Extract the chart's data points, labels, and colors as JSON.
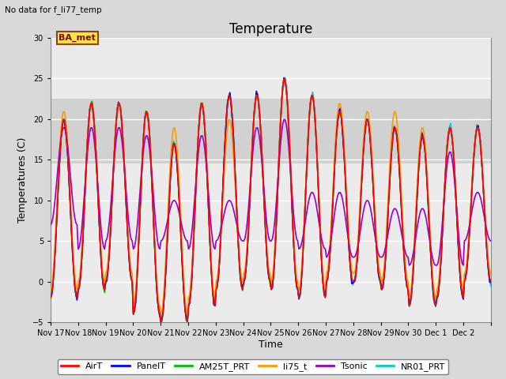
{
  "title": "Temperature",
  "ylabel": "Temperatures (C)",
  "xlabel": "Time",
  "no_data_label": "No data for f_li77_temp",
  "ba_met_label": "BA_met",
  "ylim": [
    -5,
    30
  ],
  "n_days": 16,
  "x_tick_labels": [
    "Nov 17",
    "Nov 18",
    "Nov 19",
    "Nov 20",
    "Nov 21",
    "Nov 22",
    "Nov 23",
    "Nov 24",
    "Nov 25",
    "Nov 26",
    "Nov 27",
    "Nov 28",
    "Nov 29",
    "Nov 30",
    "Dec 1",
    "Dec 2"
  ],
  "series": {
    "AirT": {
      "color": "#ff0000",
      "lw": 1.2
    },
    "PanelT": {
      "color": "#0000ff",
      "lw": 1.2
    },
    "AM25T_PRT": {
      "color": "#00bb00",
      "lw": 1.2
    },
    "li75_t": {
      "color": "#ff9900",
      "lw": 1.2
    },
    "Tsonic": {
      "color": "#9900cc",
      "lw": 1.2
    },
    "NR01_PRT": {
      "color": "#00cccc",
      "lw": 1.2
    }
  },
  "bg_color": "#d9d9d9",
  "plot_bg": "#ebebeb",
  "grid_color": "#ffffff",
  "span_low": 14.5,
  "span_high": 22.5,
  "span_color": "#c0c0c0",
  "title_fontsize": 12,
  "label_fontsize": 9,
  "tick_fontsize": 7,
  "legend_fontsize": 8,
  "ba_met_color": "#8B0000",
  "ba_met_bg": "#f5e642",
  "ba_met_edge": "#8B4513"
}
